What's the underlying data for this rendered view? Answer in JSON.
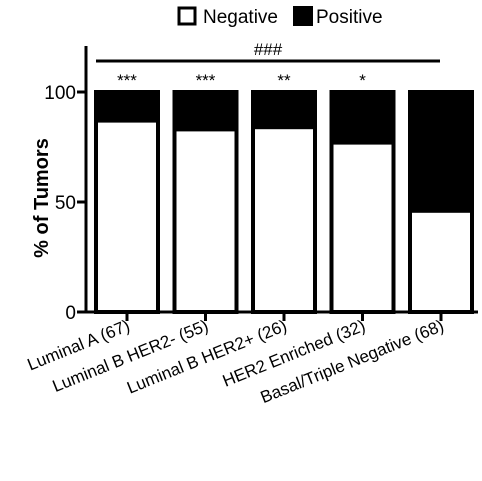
{
  "chart_data": {
    "type": "bar",
    "stacked": true,
    "ylabel": "% of Tumors",
    "xlabel": "",
    "ylim": [
      0,
      120
    ],
    "yticks": [
      0,
      50,
      100
    ],
    "categories": [
      "Luminal A (67)",
      "Luminal B HER2- (55)",
      "Luminal B HER2+ (26)",
      "HER2 Enriched (32)",
      "Basal/Triple Negative (68)"
    ],
    "series": [
      {
        "name": "Negative",
        "color": "#ffffff",
        "values": [
          87,
          83,
          84,
          77,
          46
        ]
      },
      {
        "name": "Positive",
        "color": "#000000",
        "values": [
          13,
          17,
          16,
          23,
          54
        ]
      }
    ],
    "significance": [
      "***",
      "***",
      "**",
      "*",
      ""
    ],
    "bracket_label": "###",
    "legend_position": "top-center"
  }
}
